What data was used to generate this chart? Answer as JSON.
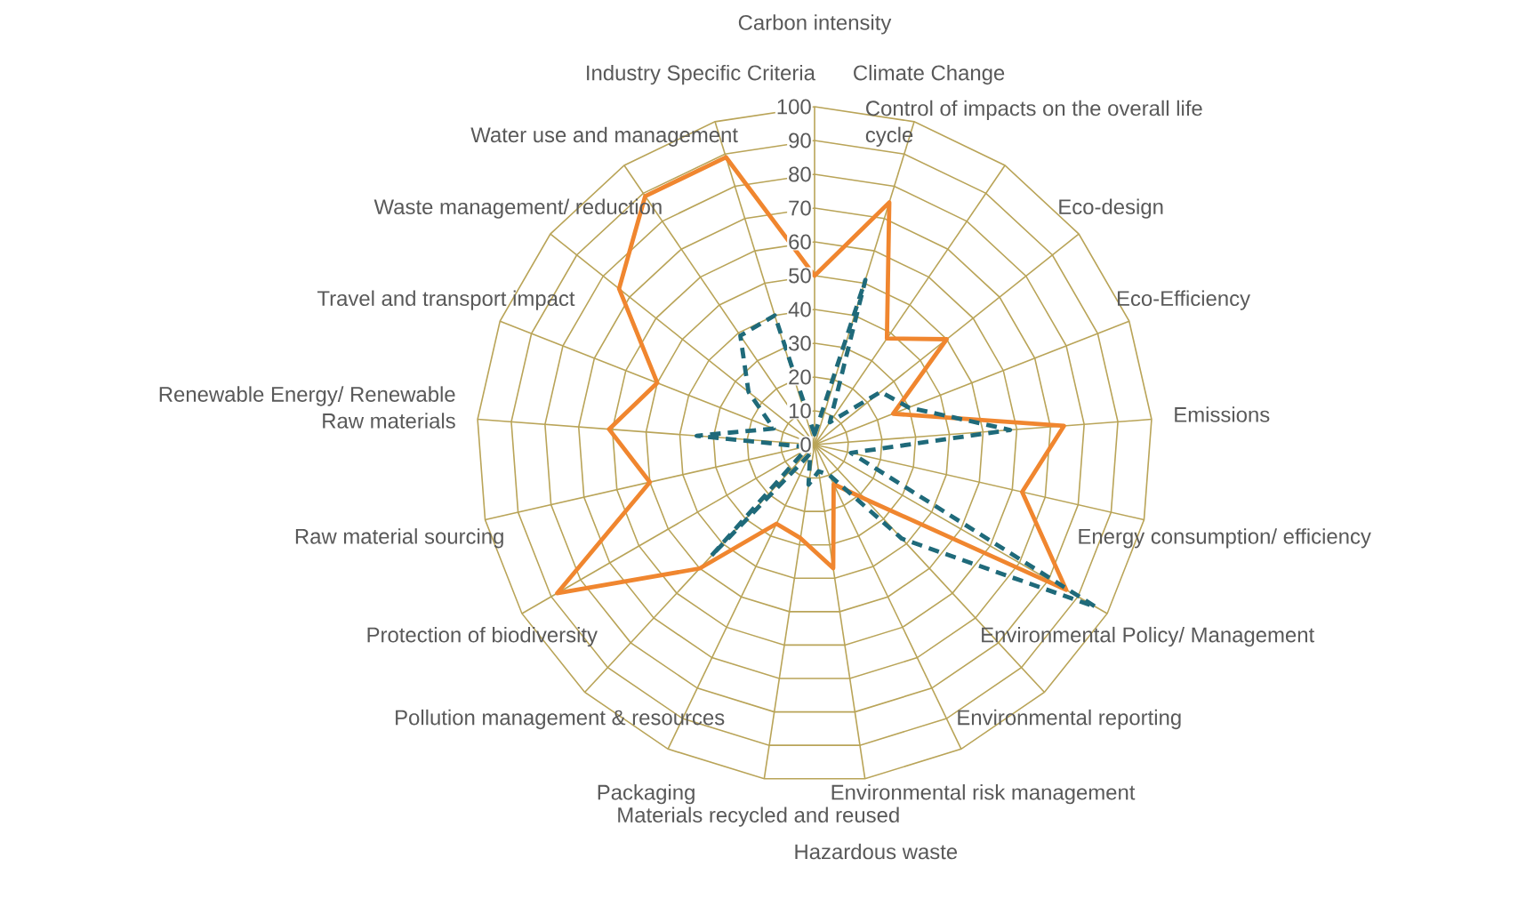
{
  "chart_data": {
    "type": "radar",
    "categories": [
      "Carbon intensity",
      "Climate Change",
      "Control of impacts on the overall life cycle",
      "Eco-design",
      "Eco-Efficiency",
      "Emissions",
      "Energy consumption/ efficiency",
      "Environmental Policy/ Management",
      "Environmental reporting",
      "Environmental risk management",
      "Hazardous waste",
      "Materials recycled and reused",
      "Packaging",
      "Pollution management & resources",
      "Protection of biodiversity",
      "Raw material sourcing",
      "Renewable Energy/ Renewable Raw materials",
      "Travel and transport impact",
      "Waste management/ reduction",
      "Water use and management",
      "Industry Specific Criteria"
    ],
    "series": [
      {
        "color": "#f0862f",
        "line_style": "solid",
        "values": [
          50,
          75,
          38,
          50,
          25,
          74,
          63,
          86,
          22,
          13,
          37,
          28,
          26,
          50,
          88,
          50,
          61,
          50,
          74,
          89,
          89
        ]
      },
      {
        "color": "#1f6a7a",
        "line_style": "dashed",
        "values": [
          3,
          51,
          8,
          25,
          30,
          58,
          11,
          96,
          38,
          10,
          8,
          12,
          3,
          45,
          3,
          3,
          35,
          13,
          25,
          39,
          40
        ]
      }
    ],
    "ylim": [
      0,
      100
    ],
    "yticks": [
      0,
      10,
      20,
      30,
      40,
      50,
      60,
      70,
      80,
      90,
      100
    ],
    "grid": true
  }
}
